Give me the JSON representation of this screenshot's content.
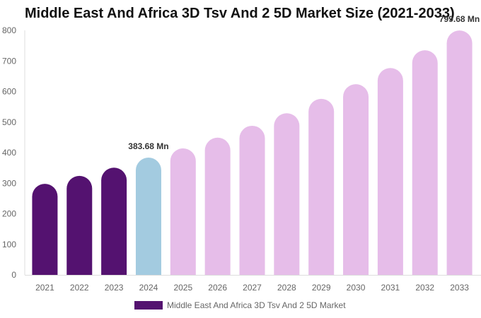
{
  "chart_data": {
    "type": "bar",
    "title": "Middle East And Africa 3D Tsv And 2 5D Market Size (2021-2033)",
    "categories": [
      "2021",
      "2022",
      "2023",
      "2024",
      "2025",
      "2026",
      "2027",
      "2028",
      "2029",
      "2030",
      "2031",
      "2032",
      "2033"
    ],
    "series": [
      {
        "name": "Middle East And Africa 3D Tsv And 2 5D Market",
        "values": [
          298,
          324,
          351,
          383.68,
          414,
          449,
          488,
          529,
          576,
          624,
          677,
          735,
          799.68
        ]
      }
    ],
    "data_labels": [
      {
        "category": "2024",
        "text": "383.68 Mn"
      },
      {
        "category": "2033",
        "text": "799.68 Mn"
      }
    ],
    "yticks": [
      0,
      100,
      200,
      300,
      400,
      500,
      600,
      700,
      800
    ],
    "ylim": [
      0,
      800
    ],
    "grid": false,
    "legend_position": "bottom",
    "colors": {
      "historical": "#541270",
      "current": "#a3cbe0",
      "forecast": "#e6bde9"
    }
  }
}
